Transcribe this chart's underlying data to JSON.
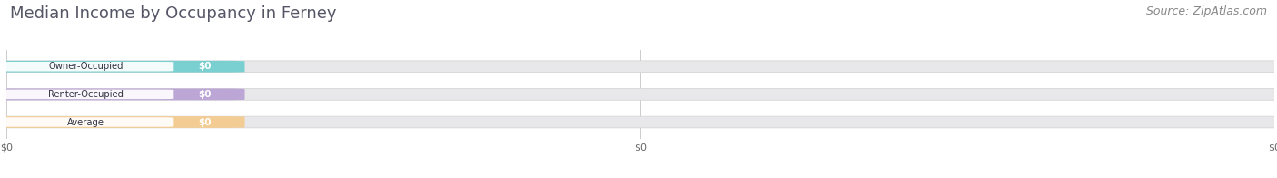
{
  "title": "Median Income by Occupancy in Ferney",
  "source": "Source: ZipAtlas.com",
  "categories": [
    "Owner-Occupied",
    "Renter-Occupied",
    "Average"
  ],
  "values": [
    0,
    0,
    0
  ],
  "bar_colors": [
    "#6ecece",
    "#b89fd4",
    "#f5c98a"
  ],
  "value_labels": [
    "$0",
    "$0",
    "$0"
  ],
  "xtick_labels": [
    "$0",
    "$0",
    "$0"
  ],
  "xlim": [
    0,
    1
  ],
  "background_color": "#ffffff",
  "bar_bg_color": "#e8e8e8",
  "title_fontsize": 13,
  "source_fontsize": 9,
  "title_color": "#555566",
  "label_color": "#333344"
}
